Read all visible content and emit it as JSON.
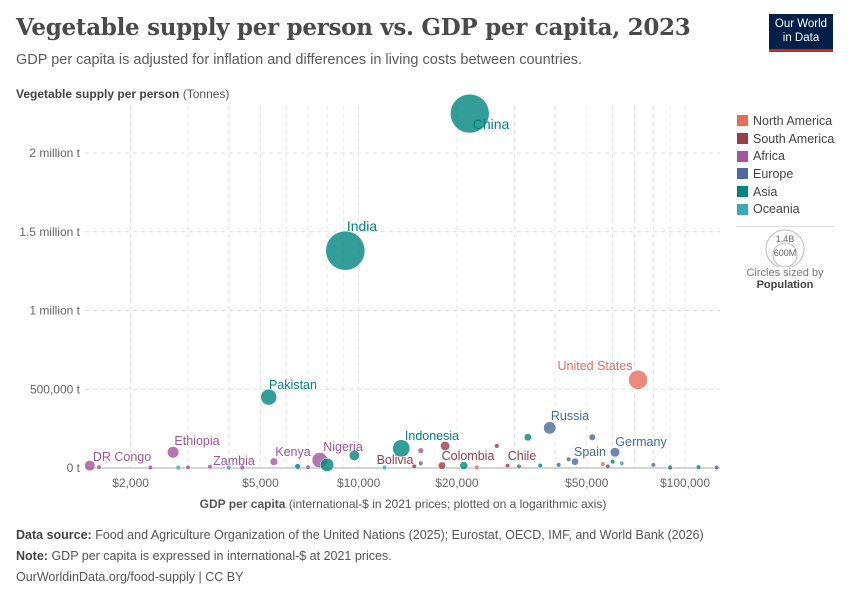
{
  "header": {
    "title": "Vegetable supply per person vs. GDP per capita, 2023",
    "subtitle": "GDP per capita is adjusted for inflation and differences in living costs between countries.",
    "logo_line1": "Our World",
    "logo_line2": "in Data"
  },
  "footer": {
    "source_label": "Data source:",
    "source": "Food and Agriculture Organization of the United Nations (2025); Eurostat, OECD, IMF, and World Bank (2026)",
    "note_label": "Note:",
    "note": "GDP per capita is expressed in international-$ at 2021 prices.",
    "url": "OurWorldinData.org/food-supply | CC BY"
  },
  "size_legend": {
    "big": "1.4B",
    "small": "600M",
    "caption": "Circles sized by",
    "variable": "Population"
  },
  "chart_data": {
    "type": "scatter",
    "title": "Vegetable supply per person vs. GDP per capita, 2023",
    "ylabel_bold": "Vegetable supply per person",
    "ylabel_unit": "(Tonnes)",
    "xlabel_bold": "GDP per capita",
    "xlabel_rest": "(international-$ in 2021 prices; plotted on a logarithmic axis)",
    "xscale": "log",
    "xlim": [
      1450,
      128000
    ],
    "ylim": [
      0,
      2300000
    ],
    "grid": true,
    "legend": "right",
    "xticks": [
      {
        "v": 2000,
        "label": "$2,000"
      },
      {
        "v": 5000,
        "label": "$5,000"
      },
      {
        "v": 10000,
        "label": "$10,000"
      },
      {
        "v": 20000,
        "label": "$20,000"
      },
      {
        "v": 50000,
        "label": "$50,000"
      },
      {
        "v": 100000,
        "label": "$100,000"
      }
    ],
    "yticks": [
      {
        "v": 0,
        "label": "0 t"
      },
      {
        "v": 500000,
        "label": "500,000 t"
      },
      {
        "v": 1000000,
        "label": "1 million t"
      },
      {
        "v": 1500000,
        "label": "1.5 million t"
      },
      {
        "v": 2000000,
        "label": "2 million t"
      }
    ],
    "colors": {
      "North America": "#e56e5a",
      "South America": "#9a3c4a",
      "Africa": "#a2559c",
      "Europe": "#4c6a9c",
      "Asia": "#00847e",
      "Oceania": "#38aaba"
    },
    "regions": [
      "North America",
      "South America",
      "Africa",
      "Europe",
      "Asia",
      "Oceania"
    ],
    "points": [
      {
        "label": "China",
        "region": "Asia",
        "x": 21900,
        "y": 2250000,
        "pop": 1410
      },
      {
        "label": "India",
        "region": "Asia",
        "x": 9100,
        "y": 1380000,
        "pop": 1430
      },
      {
        "label": "United States",
        "region": "North America",
        "x": 71800,
        "y": 560000,
        "pop": 340
      },
      {
        "label": "Pakistan",
        "region": "Asia",
        "x": 5300,
        "y": 450000,
        "pop": 240
      },
      {
        "label": "Russia",
        "region": "Europe",
        "x": 38500,
        "y": 255000,
        "pop": 144
      },
      {
        "label": "Germany",
        "region": "Europe",
        "x": 61000,
        "y": 100000,
        "pop": 84
      },
      {
        "label": "Spain",
        "region": "Europe",
        "x": 46000,
        "y": 40000,
        "pop": 48
      },
      {
        "label": "Ethiopia",
        "region": "Africa",
        "x": 2700,
        "y": 100000,
        "pop": 126
      },
      {
        "label": "Indonesia",
        "region": "Asia",
        "x": 13500,
        "y": 125000,
        "pop": 278
      },
      {
        "label": "Nigeria",
        "region": "Africa",
        "x": 7600,
        "y": 50000,
        "pop": 224
      },
      {
        "label": "Kenya",
        "region": "Africa",
        "x": 5500,
        "y": 40000,
        "pop": 55
      },
      {
        "label": "DR Congo",
        "region": "Africa",
        "x": 1500,
        "y": 15000,
        "pop": 102
      },
      {
        "label": "Zambia",
        "region": "Africa",
        "x": 3500,
        "y": 8000,
        "pop": 20
      },
      {
        "label": "Bolivia",
        "region": "South America",
        "x": 14800,
        "y": 10000,
        "pop": 12
      },
      {
        "label": "Colombia",
        "region": "South America",
        "x": 18000,
        "y": 15000,
        "pop": 52
      },
      {
        "label": "Chile",
        "region": "South America",
        "x": 28600,
        "y": 15000,
        "pop": 20
      },
      {
        "label": "",
        "region": "Asia",
        "x": 8000,
        "y": 20000,
        "pop": 170
      },
      {
        "label": "",
        "region": "Asia",
        "x": 9700,
        "y": 80000,
        "pop": 100
      },
      {
        "label": "",
        "region": "Asia",
        "x": 33000,
        "y": 195000,
        "pop": 50
      },
      {
        "label": "",
        "region": "Europe",
        "x": 52000,
        "y": 195000,
        "pop": 40
      },
      {
        "label": "",
        "region": "South America",
        "x": 18400,
        "y": 140000,
        "pop": 80
      },
      {
        "label": "",
        "region": "South America",
        "x": 26500,
        "y": 140000,
        "pop": 20
      },
      {
        "label": "",
        "region": "Africa",
        "x": 15500,
        "y": 110000,
        "pop": 30
      },
      {
        "label": "",
        "region": "Europe",
        "x": 44000,
        "y": 55000,
        "pop": 20
      },
      {
        "label": "",
        "region": "Asia",
        "x": 60000,
        "y": 40000,
        "pop": 20
      },
      {
        "label": "",
        "region": "North America",
        "x": 56000,
        "y": 25000,
        "pop": 15
      },
      {
        "label": "",
        "region": "Asia",
        "x": 21000,
        "y": 15000,
        "pop": 60
      },
      {
        "label": "",
        "region": "Africa",
        "x": 1600,
        "y": 5000,
        "pop": 20
      },
      {
        "label": "",
        "region": "Africa",
        "x": 2300,
        "y": 3000,
        "pop": 10
      },
      {
        "label": "",
        "region": "Oceania",
        "x": 2800,
        "y": 2000,
        "pop": 5
      },
      {
        "label": "",
        "region": "Africa",
        "x": 3000,
        "y": 4000,
        "pop": 10
      },
      {
        "label": "",
        "region": "Oceania",
        "x": 4000,
        "y": 2000,
        "pop": 5
      },
      {
        "label": "",
        "region": "Africa",
        "x": 4400,
        "y": 3000,
        "pop": 10
      },
      {
        "label": "",
        "region": "Asia",
        "x": 6500,
        "y": 10000,
        "pop": 30
      },
      {
        "label": "",
        "region": "Africa",
        "x": 7000,
        "y": 5000,
        "pop": 10
      },
      {
        "label": "",
        "region": "Oceania",
        "x": 12000,
        "y": 3000,
        "pop": 3
      },
      {
        "label": "",
        "region": "Europe",
        "x": 15500,
        "y": 30000,
        "pop": 10
      },
      {
        "label": "",
        "region": "North America",
        "x": 23000,
        "y": 4000,
        "pop": 5
      },
      {
        "label": "",
        "region": "Europe",
        "x": 31000,
        "y": 10000,
        "pop": 10
      },
      {
        "label": "",
        "region": "Asia",
        "x": 36000,
        "y": 15000,
        "pop": 10
      },
      {
        "label": "",
        "region": "Europe",
        "x": 58000,
        "y": 10000,
        "pop": 8
      },
      {
        "label": "",
        "region": "Europe",
        "x": 80000,
        "y": 20000,
        "pop": 5
      },
      {
        "label": "",
        "region": "Asia",
        "x": 90000,
        "y": 3000,
        "pop": 3
      },
      {
        "label": "",
        "region": "Europe",
        "x": 125000,
        "y": 3000,
        "pop": 3
      },
      {
        "label": "",
        "region": "Asia",
        "x": 110000,
        "y": 5000,
        "pop": 5
      },
      {
        "label": "",
        "region": "Oceania",
        "x": 64000,
        "y": 30000,
        "pop": 8
      },
      {
        "label": "",
        "region": "Europe",
        "x": 41000,
        "y": 20000,
        "pop": 10
      }
    ]
  }
}
